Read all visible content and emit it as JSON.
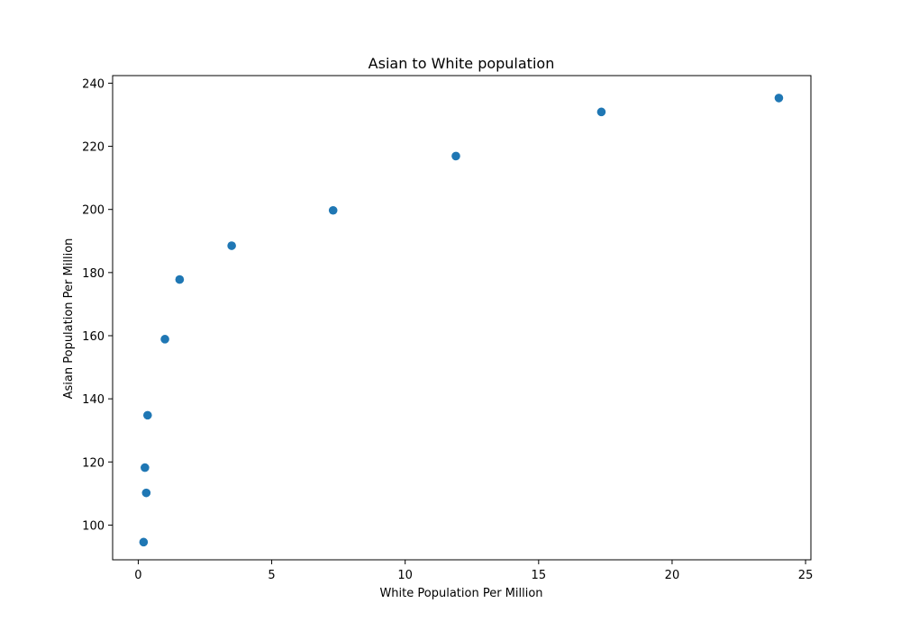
{
  "chart_data": {
    "type": "scatter",
    "title": "Asian to White population",
    "xlabel": "White Population Per Million",
    "ylabel": "Asian Population Per Million",
    "xlim": [
      -0.96,
      25.2
    ],
    "ylim": [
      89.0,
      242.4
    ],
    "xticks": [
      0,
      5,
      10,
      15,
      20,
      25
    ],
    "yticks": [
      100,
      120,
      140,
      160,
      180,
      200,
      220,
      240
    ],
    "xtick_labels": [
      "0",
      "5",
      "10",
      "15",
      "20",
      "25"
    ],
    "ytick_labels": [
      "100",
      "120",
      "140",
      "160",
      "180",
      "200",
      "220",
      "240"
    ],
    "grid": false,
    "marker_color": "#1f77b4",
    "series": [
      {
        "points": [
          {
            "x": 0.2,
            "y": 94.6
          },
          {
            "x": 0.3,
            "y": 110.2
          },
          {
            "x": 0.25,
            "y": 118.2
          },
          {
            "x": 0.35,
            "y": 134.8
          },
          {
            "x": 1.0,
            "y": 158.9
          },
          {
            "x": 1.55,
            "y": 177.8
          },
          {
            "x": 3.5,
            "y": 188.5
          },
          {
            "x": 7.3,
            "y": 199.7
          },
          {
            "x": 11.9,
            "y": 216.9
          },
          {
            "x": 17.35,
            "y": 230.9
          },
          {
            "x": 24.0,
            "y": 235.3
          }
        ]
      }
    ]
  }
}
